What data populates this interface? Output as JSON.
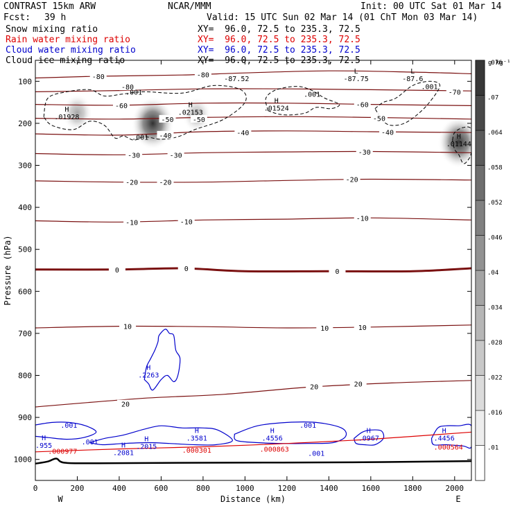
{
  "header": {
    "model": "CONTRAST 15km ARW",
    "org": "NCAR/MMM",
    "init": "Init: 00 UTC Sat 01 Mar 14",
    "fcst_label": "Fcst:",
    "fcst_value": "39 h",
    "valid": "Valid: 15 UTC Sun 02 Mar 14 (01 ChT Mon 03 Mar 14)"
  },
  "fields": [
    {
      "name": "Snow mixing ratio",
      "xy": "XY=  96.0, 72.5 to 235.3, 72.5",
      "color": "#000000"
    },
    {
      "name": "Rain water mixing ratio",
      "xy": "XY=  96.0, 72.5 to 235.3, 72.5",
      "color": "#dd0000"
    },
    {
      "name": "Cloud water mixing ratio",
      "xy": "XY=  96.0, 72.5 to 235.3, 72.5",
      "color": "#0000cc"
    },
    {
      "name": "Cloud ice mixing ratio",
      "xy": "XY=  96.0, 72.5 to 235.3, 72.5",
      "color": "#000000"
    }
  ],
  "chart_data": {
    "type": "heatmap",
    "xlabel": "Distance (km)",
    "ylabel": "Pressure (hPa)",
    "xlim": [
      0,
      2080
    ],
    "ylim": [
      1050,
      50
    ],
    "x_ticks": [
      0,
      200,
      400,
      600,
      800,
      1000,
      1200,
      1400,
      1600,
      1800,
      2000
    ],
    "y_ticks": [
      100,
      200,
      300,
      400,
      500,
      600,
      700,
      800,
      900,
      1000
    ],
    "endpoints": {
      "left": "W",
      "right": "E"
    },
    "colorbar": {
      "unit": "g kg⁻¹",
      "levels": [
        0.01,
        0.016,
        0.022,
        0.028,
        0.034,
        0.04,
        0.046,
        0.052,
        0.058,
        0.064,
        0.07,
        0.076
      ],
      "labels": [
        ".01",
        ".016",
        ".022",
        ".028",
        ".034",
        ".04",
        ".046",
        ".052",
        ".058",
        ".064",
        ".07",
        ".076"
      ]
    },
    "snow_blobs": [
      {
        "x": 560,
        "p": 200,
        "value": 0.07
      },
      {
        "x": 200,
        "p": 175,
        "value": 0.03
      },
      {
        "x": 770,
        "p": 180,
        "value": 0.025
      },
      {
        "x": 2020,
        "p": 245,
        "value": 0.068
      }
    ],
    "temperature_isotherms": [
      {
        "value": -80,
        "points": [
          [
            0,
            92
          ],
          [
            300,
            88
          ],
          [
            700,
            85
          ],
          [
            1000,
            80
          ],
          [
            1400,
            75
          ],
          [
            1800,
            78
          ],
          [
            2080,
            82
          ]
        ]
      },
      {
        "value": -70,
        "points": [
          [
            0,
            125
          ],
          [
            400,
            122
          ],
          [
            800,
            118
          ],
          [
            1200,
            118
          ],
          [
            1600,
            120
          ],
          [
            2080,
            123
          ]
        ]
      },
      {
        "value": -60,
        "points": [
          [
            0,
            155
          ],
          [
            400,
            157
          ],
          [
            800,
            152
          ],
          [
            1200,
            152
          ],
          [
            1600,
            155
          ],
          [
            2080,
            158
          ]
        ]
      },
      {
        "value": -50,
        "points": [
          [
            0,
            188
          ],
          [
            400,
            190
          ],
          [
            800,
            186
          ],
          [
            1200,
            184
          ],
          [
            1600,
            186
          ],
          [
            2080,
            190
          ]
        ]
      },
      {
        "value": -40,
        "points": [
          [
            0,
            225
          ],
          [
            400,
            228
          ],
          [
            800,
            220
          ],
          [
            1200,
            218
          ],
          [
            1600,
            220
          ],
          [
            2080,
            222
          ]
        ]
      },
      {
        "value": -30,
        "points": [
          [
            0,
            272
          ],
          [
            400,
            275
          ],
          [
            800,
            270
          ],
          [
            1200,
            268
          ],
          [
            1600,
            267
          ],
          [
            2080,
            270
          ]
        ]
      },
      {
        "value": -20,
        "points": [
          [
            0,
            337
          ],
          [
            400,
            340
          ],
          [
            800,
            340
          ],
          [
            1200,
            336
          ],
          [
            1600,
            333
          ],
          [
            2080,
            335
          ]
        ]
      },
      {
        "value": -10,
        "points": [
          [
            0,
            432
          ],
          [
            400,
            435
          ],
          [
            800,
            430
          ],
          [
            1200,
            428
          ],
          [
            1600,
            425
          ],
          [
            2080,
            430
          ]
        ]
      },
      {
        "value": 0,
        "points": [
          [
            0,
            548
          ],
          [
            400,
            548
          ],
          [
            700,
            545
          ],
          [
            1000,
            552
          ],
          [
            1400,
            552
          ],
          [
            1800,
            552
          ],
          [
            2080,
            545
          ]
        ]
      },
      {
        "value": 10,
        "points": [
          [
            0,
            687
          ],
          [
            400,
            683
          ],
          [
            800,
            684
          ],
          [
            1200,
            687
          ],
          [
            1600,
            685
          ],
          [
            2080,
            680
          ]
        ]
      },
      {
        "value": 20,
        "points": [
          [
            0,
            875
          ],
          [
            500,
            855
          ],
          [
            900,
            845
          ],
          [
            1300,
            828
          ],
          [
            1700,
            818
          ],
          [
            2080,
            812
          ]
        ]
      }
    ],
    "temperature_labels": [
      {
        "x": 300,
        "p": 88,
        "text": "-80"
      },
      {
        "x": 800,
        "p": 84,
        "text": "-80"
      },
      {
        "x": 440,
        "p": 113,
        "text": "-80"
      },
      {
        "x": 2000,
        "p": 125,
        "text": "-70"
      },
      {
        "x": 410,
        "p": 157,
        "text": "-60"
      },
      {
        "x": 1560,
        "p": 155,
        "text": "-60"
      },
      {
        "x": 630,
        "p": 190,
        "text": "-50"
      },
      {
        "x": 780,
        "p": 190,
        "text": "-50"
      },
      {
        "x": 1640,
        "p": 188,
        "text": "-50"
      },
      {
        "x": 620,
        "p": 228,
        "text": "-40"
      },
      {
        "x": 990,
        "p": 222,
        "text": "-40"
      },
      {
        "x": 1680,
        "p": 221,
        "text": "-40"
      },
      {
        "x": 470,
        "p": 275,
        "text": "-30"
      },
      {
        "x": 670,
        "p": 275,
        "text": "-30"
      },
      {
        "x": 1570,
        "p": 268,
        "text": "-30"
      },
      {
        "x": 460,
        "p": 340,
        "text": "-20"
      },
      {
        "x": 620,
        "p": 340,
        "text": "-20"
      },
      {
        "x": 1510,
        "p": 333,
        "text": "-20"
      },
      {
        "x": 460,
        "p": 435,
        "text": "-10"
      },
      {
        "x": 720,
        "p": 434,
        "text": "-10"
      },
      {
        "x": 1560,
        "p": 425,
        "text": "-10"
      },
      {
        "x": 390,
        "p": 548,
        "text": "0"
      },
      {
        "x": 720,
        "p": 545,
        "text": "0"
      },
      {
        "x": 1440,
        "p": 552,
        "text": "0"
      },
      {
        "x": 440,
        "p": 683,
        "text": "10"
      },
      {
        "x": 1380,
        "p": 687,
        "text": "10"
      },
      {
        "x": 1560,
        "p": 685,
        "text": "10"
      },
      {
        "x": 1330,
        "p": 826,
        "text": "20"
      },
      {
        "x": 1540,
        "p": 820,
        "text": "20"
      },
      {
        "x": 430,
        "p": 868,
        "text": "20"
      }
    ],
    "cloud_ice_contours": [
      [
        [
          40,
          185
        ],
        [
          60,
          140
        ],
        [
          150,
          125
        ],
        [
          260,
          120
        ],
        [
          330,
          135
        ],
        [
          420,
          130
        ],
        [
          520,
          125
        ],
        [
          700,
          128
        ],
        [
          850,
          110
        ],
        [
          980,
          120
        ],
        [
          1000,
          150
        ],
        [
          900,
          190
        ],
        [
          760,
          215
        ],
        [
          680,
          232
        ],
        [
          600,
          238
        ],
        [
          520,
          232
        ],
        [
          470,
          240
        ],
        [
          420,
          230
        ],
        [
          380,
          235
        ],
        [
          330,
          205
        ],
        [
          260,
          195
        ],
        [
          180,
          215
        ],
        [
          80,
          205
        ],
        [
          40,
          185
        ]
      ],
      [
        [
          1110,
          170
        ],
        [
          1100,
          140
        ],
        [
          1150,
          120
        ],
        [
          1250,
          112
        ],
        [
          1320,
          122
        ],
        [
          1380,
          140
        ],
        [
          1450,
          155
        ],
        [
          1410,
          165
        ],
        [
          1340,
          162
        ],
        [
          1290,
          175
        ],
        [
          1220,
          180
        ],
        [
          1160,
          178
        ],
        [
          1110,
          170
        ]
      ],
      [
        [
          1620,
          165
        ],
        [
          1660,
          150
        ],
        [
          1720,
          140
        ],
        [
          1800,
          110
        ],
        [
          1880,
          100
        ],
        [
          1930,
          110
        ],
        [
          1880,
          150
        ],
        [
          1820,
          180
        ],
        [
          1760,
          200
        ],
        [
          1700,
          205
        ],
        [
          1660,
          195
        ],
        [
          1620,
          165
        ]
      ],
      [
        [
          1990,
          240
        ],
        [
          2000,
          222
        ],
        [
          2040,
          210
        ],
        [
          2080,
          215
        ],
        [
          2080,
          268
        ],
        [
          2060,
          290
        ],
        [
          2040,
          295
        ],
        [
          2020,
          275
        ],
        [
          2000,
          262
        ],
        [
          1990,
          240
        ]
      ]
    ],
    "cloud_water_contours": [
      [
        [
          520,
          810
        ],
        [
          530,
          780
        ],
        [
          550,
          760
        ],
        [
          570,
          740
        ],
        [
          585,
          720
        ],
        [
          590,
          705
        ],
        [
          620,
          690
        ],
        [
          640,
          700
        ],
        [
          660,
          705
        ],
        [
          670,
          740
        ],
        [
          690,
          760
        ],
        [
          680,
          800
        ],
        [
          660,
          815
        ],
        [
          630,
          800
        ],
        [
          600,
          810
        ],
        [
          560,
          835
        ],
        [
          540,
          820
        ],
        [
          520,
          810
        ]
      ],
      [
        [
          0,
          918
        ],
        [
          80,
          912
        ],
        [
          160,
          912
        ],
        [
          240,
          920
        ],
        [
          290,
          935
        ],
        [
          230,
          948
        ],
        [
          150,
          952
        ],
        [
          60,
          948
        ],
        [
          0,
          945
        ]
      ],
      [
        [
          260,
          960
        ],
        [
          330,
          950
        ],
        [
          420,
          942
        ],
        [
          520,
          928
        ],
        [
          600,
          920
        ],
        [
          700,
          925
        ],
        [
          800,
          925
        ],
        [
          870,
          930
        ],
        [
          940,
          955
        ],
        [
          860,
          965
        ],
        [
          760,
          965
        ],
        [
          640,
          962
        ],
        [
          540,
          960
        ],
        [
          420,
          962
        ],
        [
          320,
          965
        ],
        [
          260,
          960
        ]
      ],
      [
        [
          950,
          940
        ],
        [
          1060,
          920
        ],
        [
          1200,
          912
        ],
        [
          1340,
          912
        ],
        [
          1460,
          925
        ],
        [
          1480,
          945
        ],
        [
          1420,
          960
        ],
        [
          1300,
          962
        ],
        [
          1180,
          962
        ],
        [
          1060,
          960
        ],
        [
          960,
          955
        ],
        [
          950,
          940
        ]
      ],
      [
        [
          1520,
          950
        ],
        [
          1560,
          935
        ],
        [
          1600,
          930
        ],
        [
          1650,
          932
        ],
        [
          1660,
          950
        ],
        [
          1620,
          965
        ],
        [
          1570,
          965
        ],
        [
          1530,
          962
        ],
        [
          1520,
          950
        ]
      ],
      [
        [
          1890,
          950
        ],
        [
          1920,
          925
        ],
        [
          1960,
          920
        ],
        [
          2020,
          920
        ],
        [
          2080,
          920
        ],
        [
          2080,
          970
        ],
        [
          2040,
          968
        ],
        [
          1960,
          965
        ],
        [
          1900,
          965
        ],
        [
          1890,
          950
        ]
      ]
    ],
    "rain_contour": [
      [
        0,
        982
      ],
      [
        400,
        975
      ],
      [
        800,
        970
      ],
      [
        1200,
        962
      ],
      [
        1600,
        952
      ],
      [
        2080,
        935
      ]
    ],
    "terrain_line": [
      [
        0,
        1010
      ],
      [
        60,
        1005
      ],
      [
        100,
        998
      ],
      [
        140,
        1008
      ],
      [
        300,
        1009
      ],
      [
        800,
        1008
      ],
      [
        1500,
        1007
      ],
      [
        2080,
        1004
      ]
    ],
    "extrema": [
      {
        "x": 150,
        "p": 175,
        "label": "H",
        "value": ".01928",
        "color": "#000000"
      },
      {
        "x": 740,
        "p": 165,
        "label": "H",
        "value": ".02153",
        "color": "#000000"
      },
      {
        "x": 1150,
        "p": 155,
        "label": "H",
        "value": ".01524",
        "color": "#000000"
      },
      {
        "x": 2020,
        "p": 240,
        "label": "H",
        "value": ".01144",
        "color": "#000000"
      },
      {
        "x": 960,
        "p": 85,
        "label": "",
        "value": "-87.52",
        "color": "#000000"
      },
      {
        "x": 1530,
        "p": 85,
        "label": "L",
        "value": "-87.75",
        "color": "#000000"
      },
      {
        "x": 1800,
        "p": 85,
        "label": "L",
        "value": "-87.6",
        "color": "#000000"
      },
      {
        "x": 540,
        "p": 790,
        "label": "H",
        "value": ".2263",
        "color": "#0000cc"
      },
      {
        "x": 770,
        "p": 940,
        "label": "H",
        "value": ".3581",
        "color": "#0000cc"
      },
      {
        "x": 1130,
        "p": 940,
        "label": "H",
        "value": ".4556",
        "color": "#0000cc"
      },
      {
        "x": 1590,
        "p": 940,
        "label": "H",
        "value": ".0967",
        "color": "#0000cc"
      },
      {
        "x": 1950,
        "p": 940,
        "label": "H",
        "value": ".4456",
        "color": "#0000cc"
      },
      {
        "x": 530,
        "p": 960,
        "label": "H",
        "value": ".2015",
        "color": "#0000cc"
      },
      {
        "x": 420,
        "p": 975,
        "label": "H",
        "value": ".2081",
        "color": "#0000cc"
      },
      {
        "x": 40,
        "p": 958,
        "label": "H",
        "value": ".955",
        "color": "#0000cc"
      }
    ],
    "contour_values": [
      {
        "x": 470,
        "p": 125,
        "text": ".001",
        "color": "#000000"
      },
      {
        "x": 500,
        "p": 232,
        "text": ".001",
        "color": "#000000"
      },
      {
        "x": 1320,
        "p": 130,
        "text": ".001",
        "color": "#000000"
      },
      {
        "x": 1880,
        "p": 112,
        "text": ".001",
        "color": "#000000"
      },
      {
        "x": 160,
        "p": 918,
        "text": ".001",
        "color": "#0000cc"
      },
      {
        "x": 260,
        "p": 958,
        "text": ".001",
        "color": "#0000cc"
      },
      {
        "x": 1300,
        "p": 918,
        "text": ".001",
        "color": "#0000cc"
      },
      {
        "x": 1340,
        "p": 985,
        "text": ".001",
        "color": "#0000cc"
      },
      {
        "x": 130,
        "p": 980,
        "text": ".000977",
        "color": "#dd0000"
      },
      {
        "x": 770,
        "p": 977,
        "text": ".000301",
        "color": "#dd0000"
      },
      {
        "x": 1140,
        "p": 975,
        "text": ".000863",
        "color": "#dd0000"
      },
      {
        "x": 1970,
        "p": 970,
        "text": ".000564",
        "color": "#dd0000"
      }
    ]
  }
}
